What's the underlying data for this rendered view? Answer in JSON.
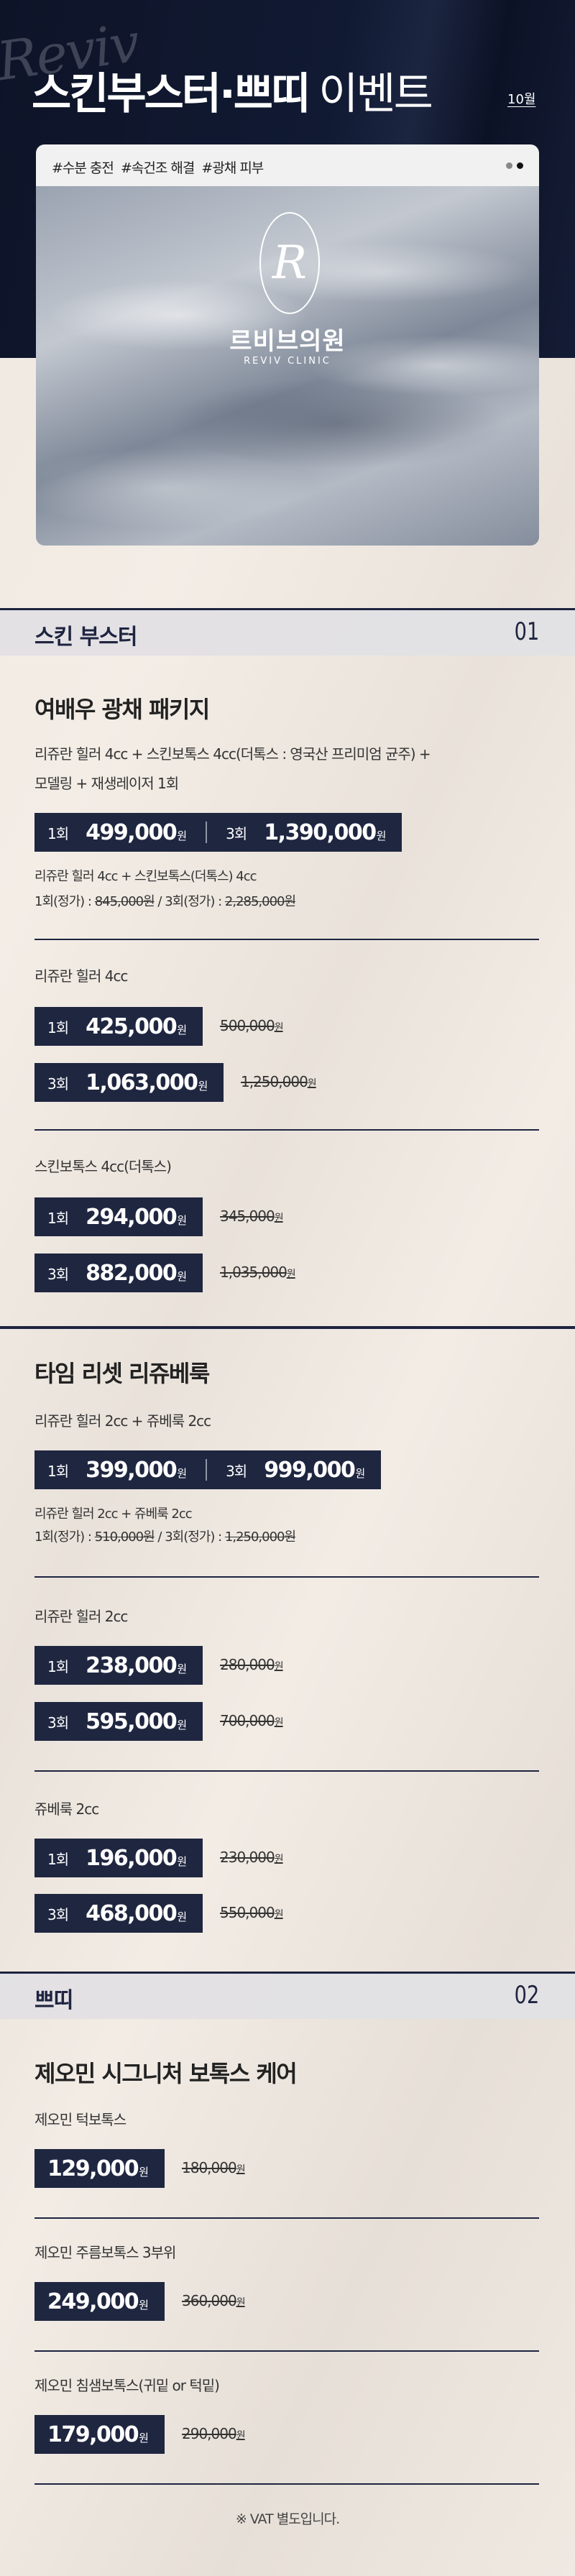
{
  "colors": {
    "navy": "#1f2640",
    "header_bg": "#0e1428",
    "cream": "#efe8e0",
    "section_bar": "#e2e0e4"
  },
  "header": {
    "watermark": "Reviv",
    "title_bold": "스킨부스터·쁘띠",
    "title_light": "이벤트",
    "month": "10월"
  },
  "hero": {
    "tags": "#수분 충전  #속건조 해결  #광채 피부",
    "logo_mark": "R",
    "logo_ko": "르비브의원",
    "logo_en": "REVIV CLINIC",
    "carousel_dots": 2
  },
  "unit": "원",
  "sections": [
    {
      "title": "스킨 부스터",
      "num": "01",
      "groups": [
        {
          "title": "여배우 광채 패키지",
          "desc": [
            "리쥬란 힐러 4cc + 스킨보톡스 4cc(더톡스 : 영국산 프리미엄 균주) +",
            "모델링 + 재생레이저 1회"
          ],
          "combo": [
            {
              "count": "1회",
              "price": "499,000"
            },
            {
              "count": "3회",
              "price": "1,390,000"
            }
          ],
          "note": {
            "line1": "리쥬란 힐러 4cc + 스킨보톡스(더톡스) 4cc",
            "p1": "1회(정가) : ",
            "o1": "845,000원",
            "mid": " / 3회(정가) : ",
            "o3": "2,285,000원"
          },
          "items": [
            {
              "label": "리쥬란 힐러 4cc",
              "rows": [
                {
                  "count": "1회",
                  "price": "425,000",
                  "orig": "500,000"
                },
                {
                  "count": "3회",
                  "price": "1,063,000",
                  "orig": "1,250,000"
                }
              ]
            },
            {
              "label": "스킨보톡스 4cc(더톡스)",
              "rows": [
                {
                  "count": "1회",
                  "price": "294,000",
                  "orig": "345,000"
                },
                {
                  "count": "3회",
                  "price": "882,000",
                  "orig": "1,035,000"
                }
              ]
            }
          ]
        },
        {
          "title": "타임 리셋 리쥬베룩",
          "desc": [
            "리쥬란 힐러 2cc + 쥬베룩 2cc"
          ],
          "combo": [
            {
              "count": "1회",
              "price": "399,000"
            },
            {
              "count": "3회",
              "price": "999,000"
            }
          ],
          "note": {
            "line1": "리쥬란 힐러 2cc + 쥬베룩 2cc",
            "p1": "1회(정가) : ",
            "o1": "510,000원",
            "mid": " / 3회(정가) : ",
            "o3": "1,250,000원"
          },
          "items": [
            {
              "label": "리쥬란 힐러 2cc",
              "rows": [
                {
                  "count": "1회",
                  "price": "238,000",
                  "orig": "280,000"
                },
                {
                  "count": "3회",
                  "price": "595,000",
                  "orig": "700,000"
                }
              ]
            },
            {
              "label": "쥬베룩 2cc",
              "rows": [
                {
                  "count": "1회",
                  "price": "196,000",
                  "orig": "230,000"
                },
                {
                  "count": "3회",
                  "price": "468,000",
                  "orig": "550,000"
                }
              ]
            }
          ]
        }
      ]
    },
    {
      "title": "쁘띠",
      "num": "02",
      "groups": [
        {
          "title": "제오민 시그니처 보톡스 케어",
          "items": [
            {
              "label": "제오민 턱보톡스",
              "rows": [
                {
                  "price": "129,000",
                  "orig": "180,000"
                }
              ]
            },
            {
              "label": "제오민 주름보톡스 3부위",
              "rows": [
                {
                  "price": "249,000",
                  "orig": "360,000"
                }
              ]
            },
            {
              "label": "제오민 침샘보톡스(귀밑 or 턱밑)",
              "rows": [
                {
                  "price": "179,000",
                  "orig": "290,000"
                }
              ]
            }
          ]
        }
      ]
    }
  ],
  "footer": {
    "vat": "※ VAT 별도입니다."
  }
}
